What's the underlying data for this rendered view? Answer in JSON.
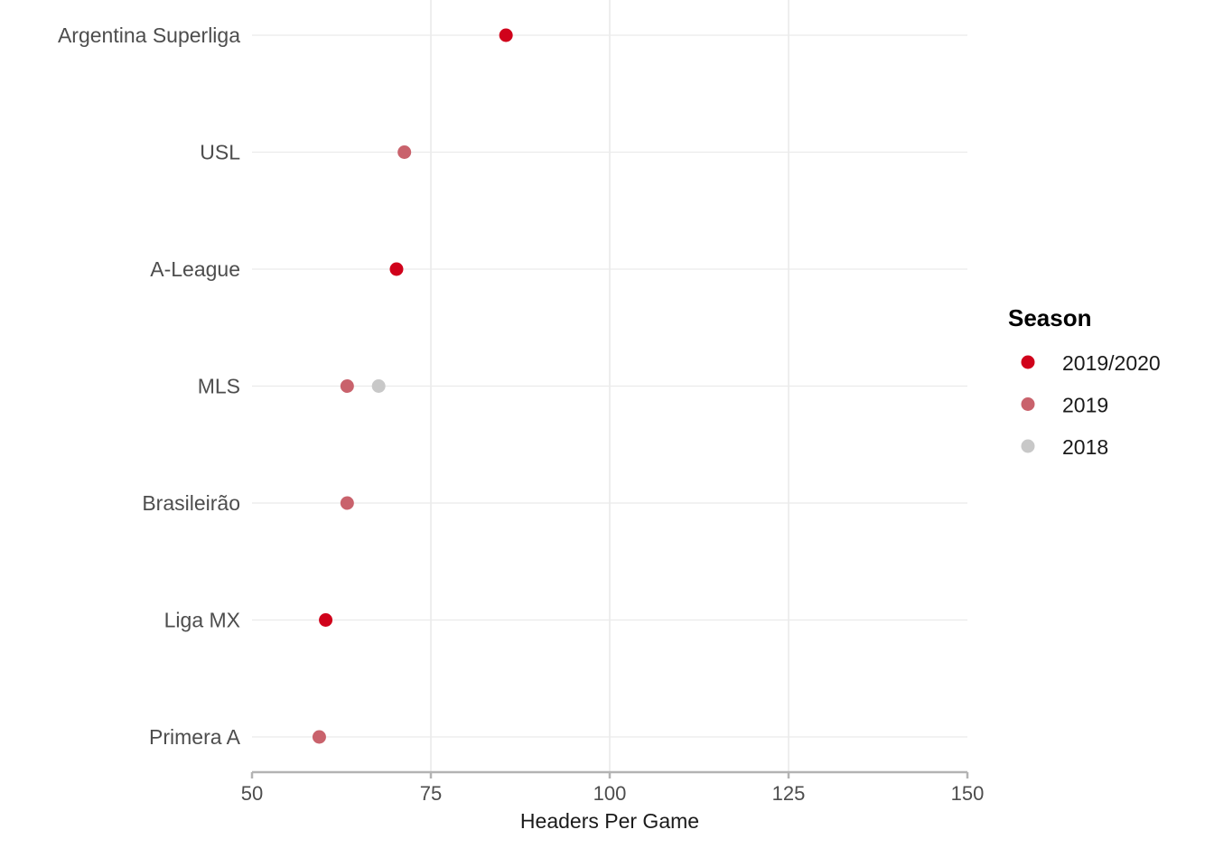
{
  "chart_data": {
    "type": "scatter",
    "categories": [
      "Argentina Superliga",
      "USL",
      "A-League",
      "MLS",
      "Brasileirão",
      "Liga MX",
      "Primera A"
    ],
    "xlabel": "Headers Per Game",
    "xlim": [
      50,
      150
    ],
    "xticks": [
      50,
      75,
      100,
      125,
      150
    ],
    "grid": true,
    "legend": {
      "title": "Season",
      "position": "right",
      "entries": [
        {
          "name": "2019/2020",
          "color": "#d0021b"
        },
        {
          "name": "2019",
          "color": "#c9626c"
        },
        {
          "name": "2018",
          "color": "#c8c8c8"
        }
      ]
    },
    "series": [
      {
        "name": "2019/2020",
        "color": "#d0021b",
        "points": [
          {
            "category": "Argentina Superliga",
            "x": 85.5
          },
          {
            "category": "A-League",
            "x": 70.2
          },
          {
            "category": "Liga MX",
            "x": 60.3
          }
        ]
      },
      {
        "name": "2019",
        "color": "#c9626c",
        "points": [
          {
            "category": "USL",
            "x": 71.3
          },
          {
            "category": "MLS",
            "x": 63.3
          },
          {
            "category": "Brasileirão",
            "x": 63.3
          },
          {
            "category": "Primera A",
            "x": 59.4
          }
        ]
      },
      {
        "name": "2018",
        "color": "#c8c8c8",
        "points": [
          {
            "category": "MLS",
            "x": 67.7
          }
        ]
      }
    ]
  }
}
